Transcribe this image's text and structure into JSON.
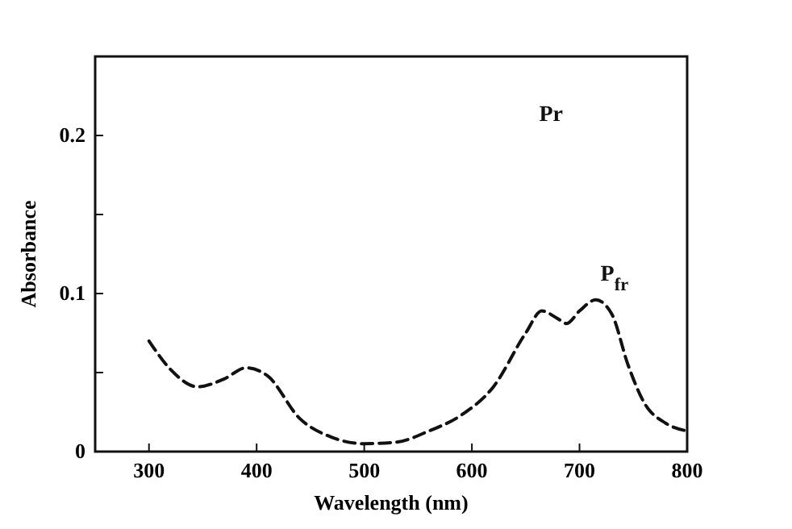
{
  "chart_data": {
    "type": "line",
    "xlabel": "Wavelength (nm)",
    "ylabel": "Absorbance",
    "annotations": [
      "Pr"
    ],
    "xlim": [
      250,
      800
    ],
    "xticks": [
      300,
      400,
      500,
      600,
      700,
      800
    ],
    "ylim": [
      0,
      0.25
    ],
    "yticks": [
      0,
      {
        "value": 0.05,
        "label": null
      },
      0.1,
      {
        "value": 0.15,
        "label": null
      },
      0.2,
      {
        "value": 0.25,
        "label": null
      }
    ],
    "line_style": "dashed",
    "marker": "none",
    "series": [
      {
        "name": "P$_{fr}$",
        "color": "#111111",
        "x": [
          300,
          320,
          345,
          370,
          390,
          410,
          440,
          470,
          500,
          530,
          560,
          590,
          620,
          650,
          665,
          680,
          688,
          700,
          715,
          730,
          745,
          760,
          780,
          800
        ],
        "values": [
          0.07,
          0.052,
          0.041,
          0.046,
          0.053,
          0.048,
          0.021,
          0.009,
          0.005,
          0.006,
          0.013,
          0.023,
          0.041,
          0.075,
          0.089,
          0.084,
          0.081,
          0.089,
          0.096,
          0.087,
          0.055,
          0.031,
          0.018,
          0.013
        ]
      }
    ]
  }
}
